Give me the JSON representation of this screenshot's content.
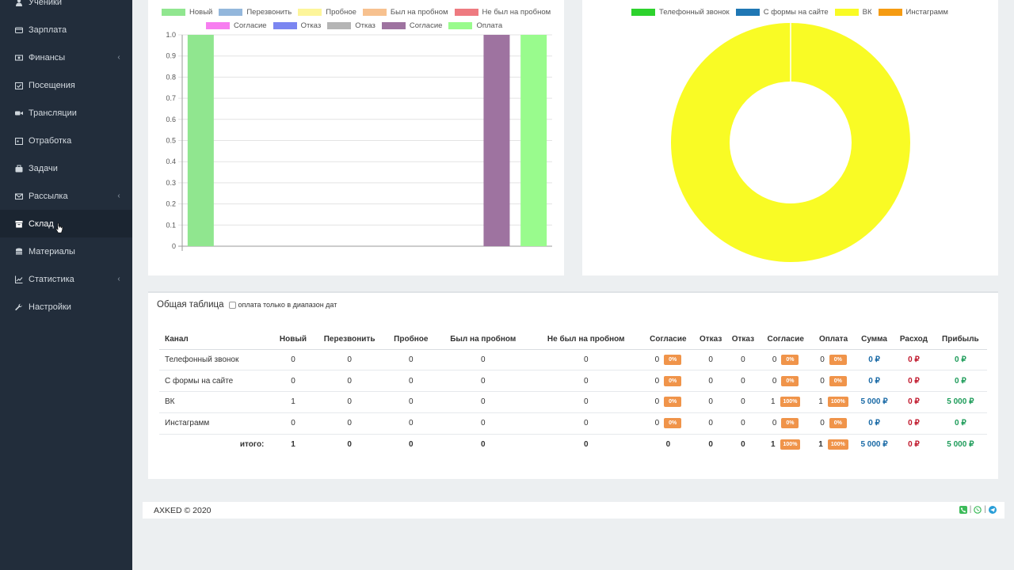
{
  "sidebar": {
    "items": [
      {
        "label": "Ученики",
        "icon": "user-icon",
        "arrow": false
      },
      {
        "label": "Зарплата",
        "icon": "wallet-icon",
        "arrow": false
      },
      {
        "label": "Финансы",
        "icon": "money-icon",
        "arrow": true
      },
      {
        "label": "Посещения",
        "icon": "calendar-check-icon",
        "arrow": false
      },
      {
        "label": "Трансляции",
        "icon": "video-icon",
        "arrow": false
      },
      {
        "label": "Отработка",
        "icon": "calendar-icon",
        "arrow": false
      },
      {
        "label": "Задачи",
        "icon": "briefcase-icon",
        "arrow": false
      },
      {
        "label": "Рассылка",
        "icon": "envelope-icon",
        "arrow": true
      },
      {
        "label": "Склад",
        "icon": "archive-icon",
        "arrow": false,
        "active": true
      },
      {
        "label": "Материалы",
        "icon": "database-icon",
        "arrow": false
      },
      {
        "label": "Статистика",
        "icon": "line-chart-icon",
        "arrow": true
      },
      {
        "label": "Настройки",
        "icon": "wrench-icon",
        "arrow": false
      }
    ],
    "arrow_glyph": "‹"
  },
  "chart_data": [
    {
      "type": "bar",
      "categories": [
        "",
        "",
        "",
        "",
        "",
        "",
        "",
        "",
        "",
        ""
      ],
      "series": [
        {
          "name": "Новый",
          "color": "#90e68f",
          "values": [
            1,
            0,
            0,
            0,
            0,
            0,
            0,
            0,
            0,
            0
          ]
        },
        {
          "name": "Перезвонить",
          "color": "#93b7dc",
          "values": [
            0,
            0,
            0,
            0,
            0,
            0,
            0,
            0,
            0,
            0
          ]
        },
        {
          "name": "Пробное",
          "color": "#fdf59a",
          "values": [
            0,
            0,
            0,
            0,
            0,
            0,
            0,
            0,
            0,
            0
          ]
        },
        {
          "name": "Был на пробном",
          "color": "#f7c18f",
          "values": [
            0,
            0,
            0,
            0,
            0,
            0,
            0,
            0,
            0,
            0
          ]
        },
        {
          "name": "Не был на пробном",
          "color": "#ee7a80",
          "values": [
            0,
            0,
            0,
            0,
            0,
            0,
            0,
            0,
            0,
            0
          ]
        },
        {
          "name": "Согласие",
          "color": "#f77ef0",
          "values": [
            0,
            0,
            0,
            0,
            0,
            0,
            0,
            0,
            0,
            0
          ]
        },
        {
          "name": "Отказ",
          "color": "#7b86f1",
          "values": [
            0,
            0,
            0,
            0,
            0,
            0,
            0,
            0,
            0,
            0
          ]
        },
        {
          "name": "Отказ",
          "color": "#b5b5b5",
          "values": [
            0,
            0,
            0,
            0,
            0,
            0,
            0,
            0,
            0,
            0
          ]
        },
        {
          "name": "Согласие",
          "color": "#9e73a0",
          "values": [
            0,
            0,
            0,
            0,
            0,
            0,
            0,
            0,
            1,
            0
          ]
        },
        {
          "name": "Оплата",
          "color": "#99fb8d",
          "values": [
            0,
            0,
            0,
            0,
            0,
            0,
            0,
            0,
            0,
            1
          ]
        }
      ],
      "ylim": [
        0,
        1.0
      ],
      "yticks": [
        "1.0",
        "0.9",
        "0.8",
        "0.7",
        "0.6",
        "0.5",
        "0.4",
        "0.3",
        "0.2",
        "0.1",
        "0"
      ],
      "grid": true,
      "legend": "top"
    },
    {
      "type": "pie",
      "variant": "doughnut",
      "labels": [
        "Телефонный звонок",
        "С формы на сайте",
        "ВК",
        "Инстаграмм"
      ],
      "colors": [
        "#2dd22d",
        "#1f77b4",
        "#f9fb25",
        "#f59b12"
      ],
      "values": [
        0,
        0,
        1,
        0
      ],
      "legend": "top"
    }
  ],
  "table_card": {
    "title": "Общая таблица",
    "checkbox_label": "оплата только в диапазон дат",
    "headers": [
      "Канал",
      "Новый",
      "Перезвонить",
      "Пробное",
      "Был на пробном",
      "Не был на пробном",
      "Согласие",
      "Отказ",
      "Отказ",
      "Согласие",
      "Оплата",
      "Сумма",
      "Расход",
      "Прибыль"
    ],
    "rows": [
      {
        "channel": "Телефонный звонок",
        "new": "0",
        "callback": "0",
        "trial": "0",
        "was_trial": "0",
        "no_trial": "0",
        "agree1": "0",
        "agree1_pct": "0%",
        "refuse1": "0",
        "refuse2": "0",
        "agree2": "0",
        "agree2_pct": "0%",
        "paid": "0",
        "paid_pct": "0%",
        "sum": "0 ₽",
        "expense": "0 ₽",
        "profit": "0 ₽"
      },
      {
        "channel": "С формы на сайте",
        "new": "0",
        "callback": "0",
        "trial": "0",
        "was_trial": "0",
        "no_trial": "0",
        "agree1": "0",
        "agree1_pct": "0%",
        "refuse1": "0",
        "refuse2": "0",
        "agree2": "0",
        "agree2_pct": "0%",
        "paid": "0",
        "paid_pct": "0%",
        "sum": "0 ₽",
        "expense": "0 ₽",
        "profit": "0 ₽"
      },
      {
        "channel": "ВК",
        "new": "1",
        "callback": "0",
        "trial": "0",
        "was_trial": "0",
        "no_trial": "0",
        "agree1": "0",
        "agree1_pct": "0%",
        "refuse1": "0",
        "refuse2": "0",
        "agree2": "1",
        "agree2_pct": "100%",
        "paid": "1",
        "paid_pct": "100%",
        "sum": "5 000 ₽",
        "expense": "0 ₽",
        "profit": "5 000 ₽"
      },
      {
        "channel": "Инстаграмм",
        "new": "0",
        "callback": "0",
        "trial": "0",
        "was_trial": "0",
        "no_trial": "0",
        "agree1": "0",
        "agree1_pct": "0%",
        "refuse1": "0",
        "refuse2": "0",
        "agree2": "0",
        "agree2_pct": "0%",
        "paid": "0",
        "paid_pct": "0%",
        "sum": "0 ₽",
        "expense": "0 ₽",
        "profit": "0 ₽"
      }
    ],
    "total": {
      "channel": "итого:",
      "new": "1",
      "callback": "0",
      "trial": "0",
      "was_trial": "0",
      "no_trial": "0",
      "agree1": "0",
      "refuse1": "0",
      "refuse2": "0",
      "agree2": "1",
      "agree2_pct": "100%",
      "paid": "1",
      "paid_pct": "100%",
      "sum": "5 000 ₽",
      "expense": "0 ₽",
      "profit": "5 000 ₽"
    }
  },
  "footer": {
    "copyright": "AXKED © 2020",
    "icons": [
      "phone-icon",
      "whatsapp-icon",
      "telegram-icon"
    ],
    "separator": "|",
    "colors": {
      "phone": "#3dbb5a",
      "whatsapp": "#3dbb5a",
      "telegram": "#2a9ed8"
    }
  }
}
